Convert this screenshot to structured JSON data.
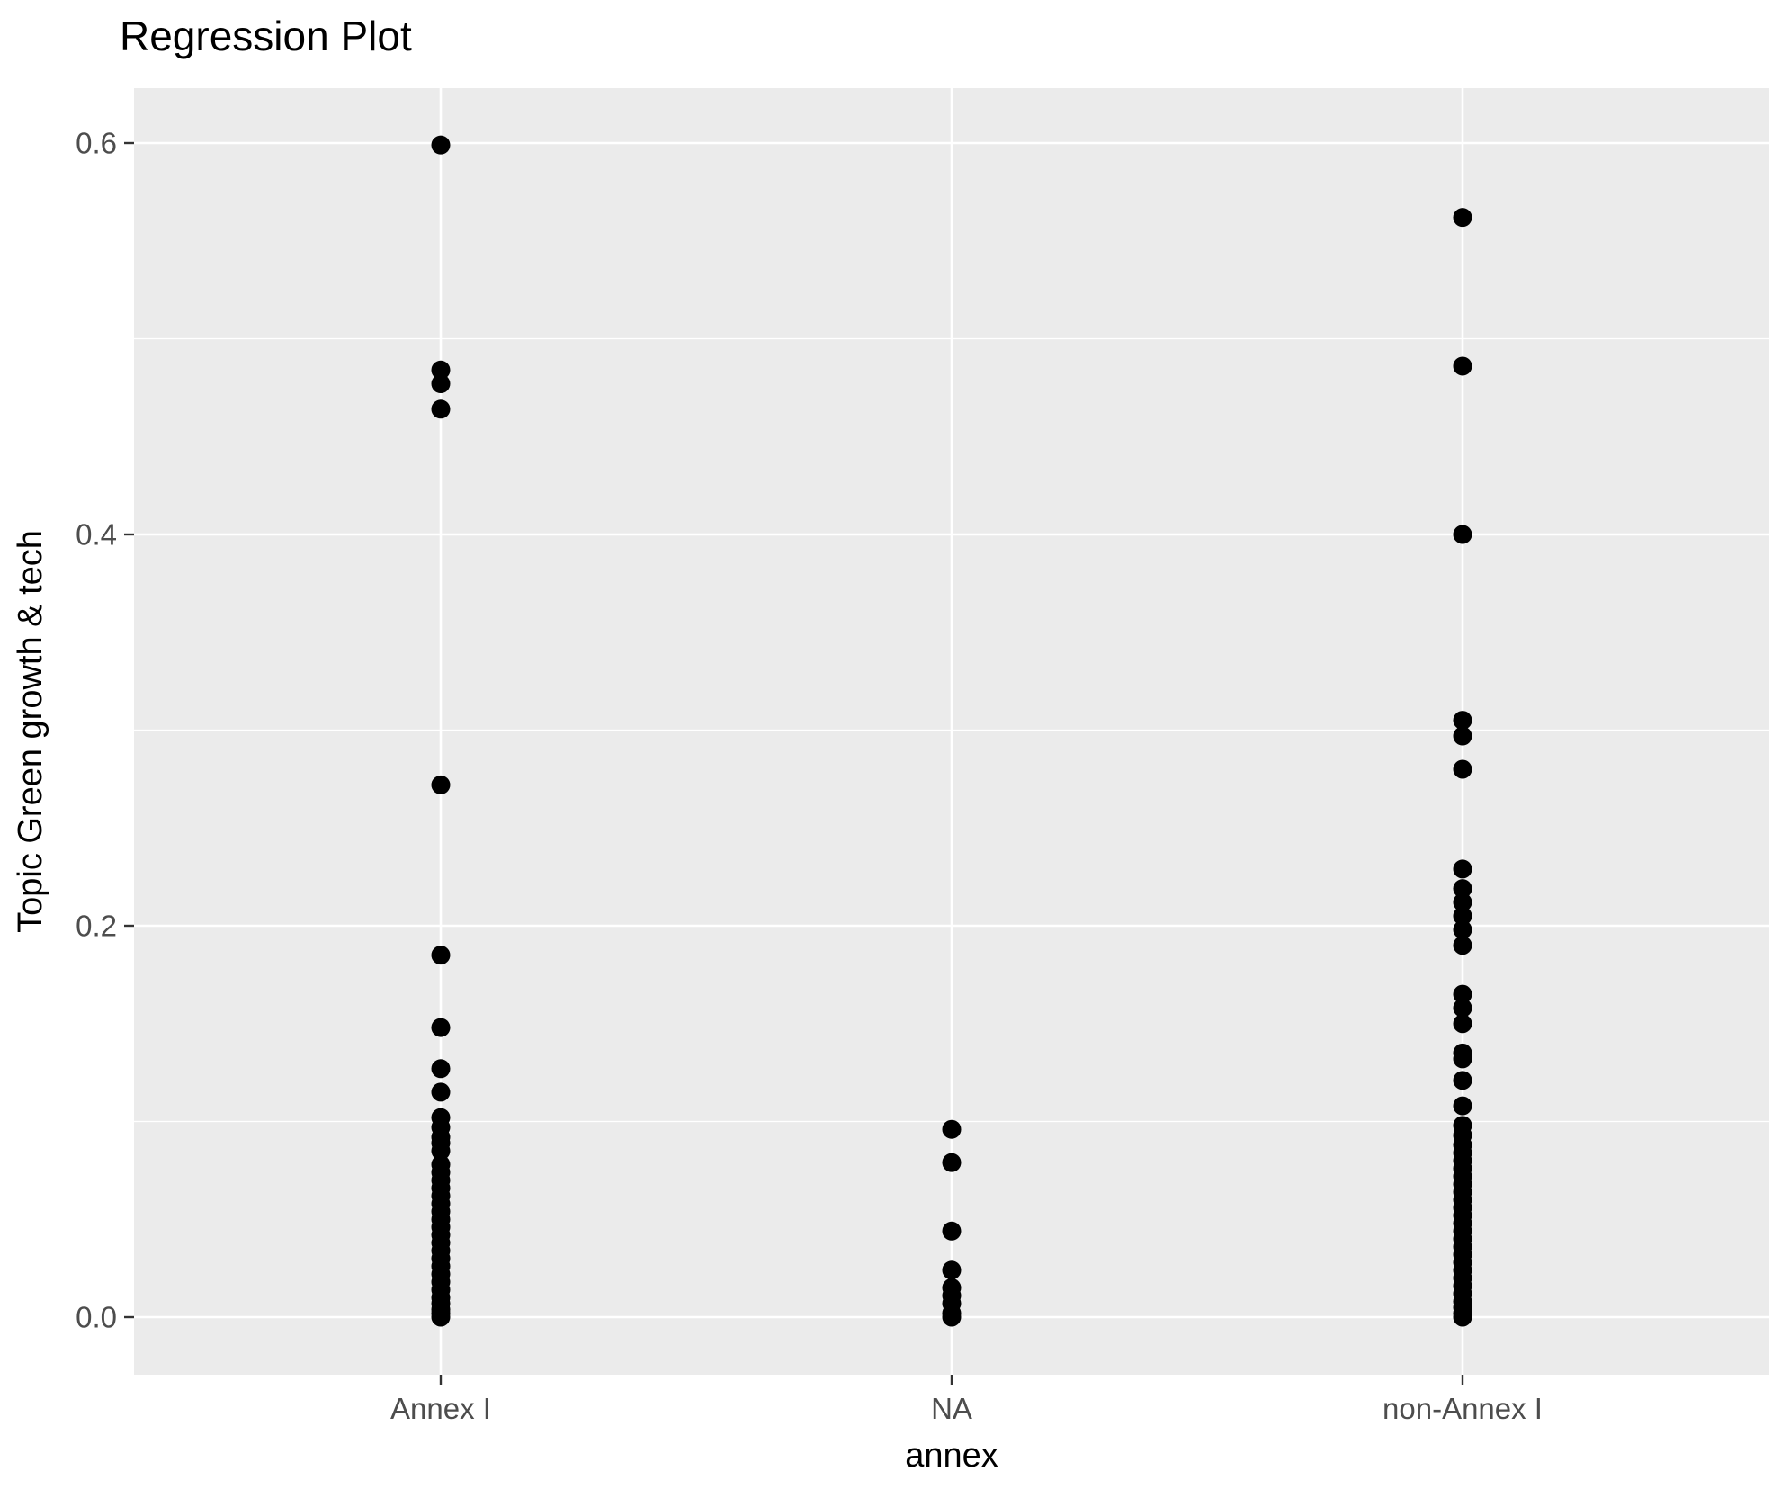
{
  "title": "Regression Plot",
  "colors": {
    "panel_bg": "#EBEBEB",
    "grid": "#FFFFFF",
    "point": "#000000",
    "tick_text": "#4D4D4D",
    "tick_mark": "#333333",
    "axis_title_text": "#000000"
  },
  "chart_data": {
    "type": "scatter",
    "title": "Regression Plot",
    "xlabel": "annex",
    "ylabel": "Topic Green growth & tech",
    "categories": [
      "Annex I",
      "NA",
      "non-Annex I"
    ],
    "y_ticks": [
      0.0,
      0.2,
      0.4,
      0.6
    ],
    "y_tick_labels": [
      "0.0",
      "0.2",
      "0.4",
      "0.6"
    ],
    "y_minor_ticks": [
      0.1,
      0.3,
      0.5
    ],
    "ylim": [
      -0.03,
      0.63
    ],
    "grid": true,
    "legend": false,
    "series": [
      {
        "name": "Annex I",
        "values": [
          0.599,
          0.484,
          0.477,
          0.464,
          0.272,
          0.185,
          0.148,
          0.127,
          0.115,
          0.102,
          0.097,
          0.092,
          0.089,
          0.085,
          0.078,
          0.074,
          0.07,
          0.066,
          0.062,
          0.058,
          0.054,
          0.05,
          0.046,
          0.042,
          0.038,
          0.034,
          0.03,
          0.026,
          0.022,
          0.018,
          0.014,
          0.01,
          0.007,
          0.004,
          0.002,
          0.0
        ]
      },
      {
        "name": "NA",
        "values": [
          0.096,
          0.079,
          0.044,
          0.024,
          0.015,
          0.011,
          0.007,
          0.002,
          0.0
        ]
      },
      {
        "name": "non-Annex I",
        "values": [
          0.562,
          0.486,
          0.4,
          0.305,
          0.297,
          0.28,
          0.229,
          0.219,
          0.212,
          0.205,
          0.198,
          0.19,
          0.165,
          0.158,
          0.15,
          0.135,
          0.132,
          0.121,
          0.108,
          0.098,
          0.093,
          0.088,
          0.084,
          0.08,
          0.076,
          0.072,
          0.068,
          0.064,
          0.06,
          0.056,
          0.052,
          0.048,
          0.044,
          0.04,
          0.036,
          0.032,
          0.028,
          0.024,
          0.02,
          0.016,
          0.012,
          0.008,
          0.005,
          0.002,
          0.0
        ]
      }
    ]
  }
}
